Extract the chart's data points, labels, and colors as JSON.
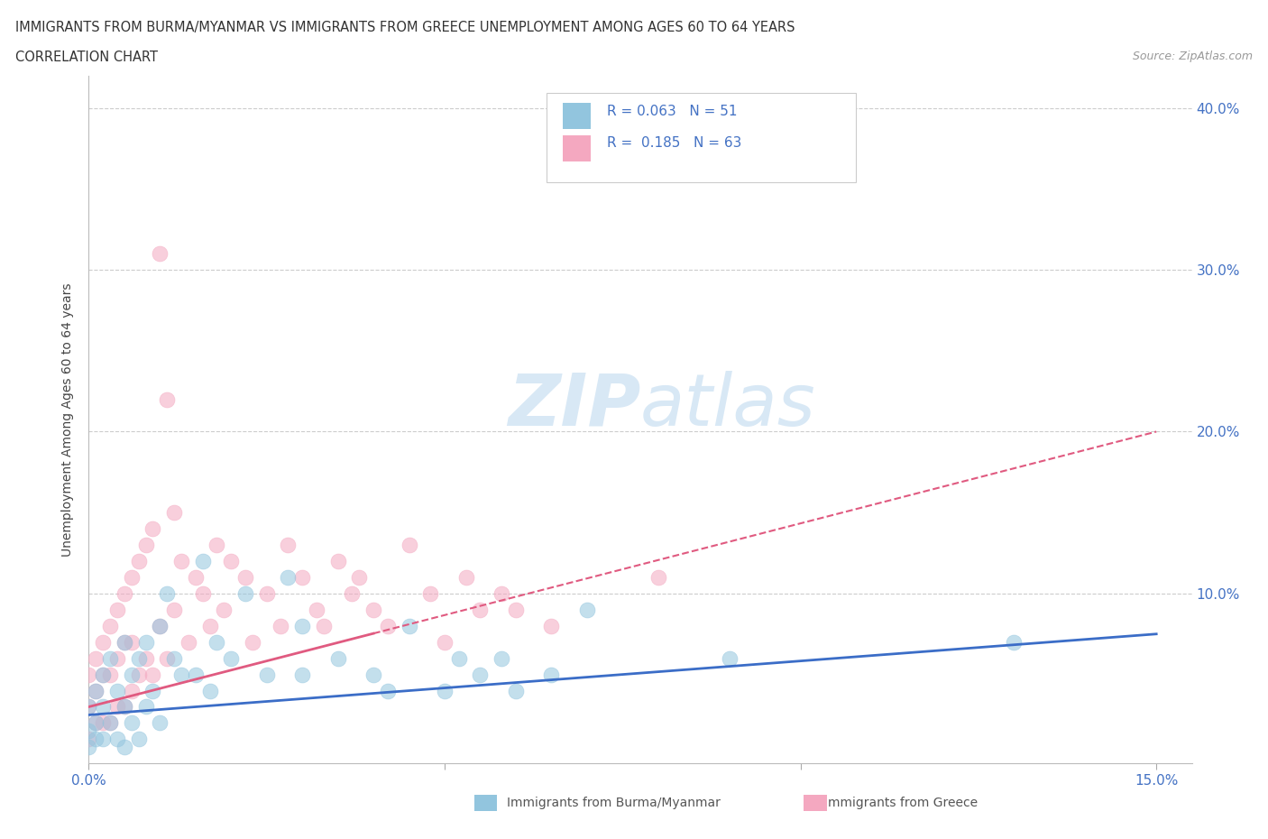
{
  "title_line1": "IMMIGRANTS FROM BURMA/MYANMAR VS IMMIGRANTS FROM GREECE UNEMPLOYMENT AMONG AGES 60 TO 64 YEARS",
  "title_line2": "CORRELATION CHART",
  "source_text": "Source: ZipAtlas.com",
  "ylabel": "Unemployment Among Ages 60 to 64 years",
  "xlim": [
    0.0,
    0.155
  ],
  "ylim": [
    -0.005,
    0.42
  ],
  "x_ticks": [
    0.0,
    0.05,
    0.1,
    0.15
  ],
  "x_tick_labels": [
    "0.0%",
    "",
    "",
    "15.0%"
  ],
  "y_ticks": [
    0.0,
    0.1,
    0.2,
    0.3,
    0.4
  ],
  "y_tick_labels_right": [
    "",
    "10.0%",
    "20.0%",
    "30.0%",
    "40.0%"
  ],
  "legend_R_burma": "0.063",
  "legend_N_burma": "51",
  "legend_R_greece": "0.185",
  "legend_N_greece": "63",
  "color_burma": "#92C5DE",
  "color_greece": "#F4A8C0",
  "trendline_color_burma": "#3B6DC7",
  "trendline_color_greece": "#E05A80",
  "watermark_color": "#D8E8F5",
  "burma_x": [
    0.0,
    0.0,
    0.0,
    0.001,
    0.001,
    0.001,
    0.002,
    0.002,
    0.002,
    0.003,
    0.003,
    0.004,
    0.004,
    0.005,
    0.005,
    0.005,
    0.006,
    0.006,
    0.007,
    0.007,
    0.008,
    0.008,
    0.009,
    0.01,
    0.01,
    0.011,
    0.012,
    0.013,
    0.015,
    0.016,
    0.017,
    0.018,
    0.02,
    0.022,
    0.025,
    0.028,
    0.03,
    0.03,
    0.035,
    0.04,
    0.042,
    0.045,
    0.05,
    0.052,
    0.055,
    0.058,
    0.06,
    0.065,
    0.07,
    0.09,
    0.13
  ],
  "burma_y": [
    0.03,
    0.015,
    0.005,
    0.04,
    0.02,
    0.01,
    0.05,
    0.03,
    0.01,
    0.06,
    0.02,
    0.04,
    0.01,
    0.07,
    0.03,
    0.005,
    0.05,
    0.02,
    0.06,
    0.01,
    0.07,
    0.03,
    0.04,
    0.08,
    0.02,
    0.1,
    0.06,
    0.05,
    0.05,
    0.12,
    0.04,
    0.07,
    0.06,
    0.1,
    0.05,
    0.11,
    0.05,
    0.08,
    0.06,
    0.05,
    0.04,
    0.08,
    0.04,
    0.06,
    0.05,
    0.06,
    0.04,
    0.05,
    0.09,
    0.06,
    0.07
  ],
  "greece_x": [
    0.0,
    0.0,
    0.0,
    0.001,
    0.001,
    0.001,
    0.002,
    0.002,
    0.002,
    0.003,
    0.003,
    0.003,
    0.004,
    0.004,
    0.004,
    0.005,
    0.005,
    0.005,
    0.006,
    0.006,
    0.006,
    0.007,
    0.007,
    0.008,
    0.008,
    0.009,
    0.009,
    0.01,
    0.01,
    0.011,
    0.011,
    0.012,
    0.012,
    0.013,
    0.014,
    0.015,
    0.016,
    0.017,
    0.018,
    0.019,
    0.02,
    0.022,
    0.023,
    0.025,
    0.027,
    0.028,
    0.03,
    0.032,
    0.033,
    0.035,
    0.037,
    0.038,
    0.04,
    0.042,
    0.045,
    0.048,
    0.05,
    0.053,
    0.055,
    0.058,
    0.06,
    0.065,
    0.08
  ],
  "greece_y": [
    0.05,
    0.03,
    0.01,
    0.06,
    0.04,
    0.02,
    0.07,
    0.05,
    0.02,
    0.08,
    0.05,
    0.02,
    0.09,
    0.06,
    0.03,
    0.1,
    0.07,
    0.03,
    0.11,
    0.07,
    0.04,
    0.12,
    0.05,
    0.13,
    0.06,
    0.14,
    0.05,
    0.31,
    0.08,
    0.22,
    0.06,
    0.15,
    0.09,
    0.12,
    0.07,
    0.11,
    0.1,
    0.08,
    0.13,
    0.09,
    0.12,
    0.11,
    0.07,
    0.1,
    0.08,
    0.13,
    0.11,
    0.09,
    0.08,
    0.12,
    0.1,
    0.11,
    0.09,
    0.08,
    0.13,
    0.1,
    0.07,
    0.11,
    0.09,
    0.1,
    0.09,
    0.08,
    0.11
  ],
  "burma_trend_x": [
    0.0,
    0.15
  ],
  "burma_trend_y": [
    0.025,
    0.075
  ],
  "greece_trend_x": [
    0.0,
    0.15
  ],
  "greece_trend_y": [
    0.03,
    0.2
  ]
}
